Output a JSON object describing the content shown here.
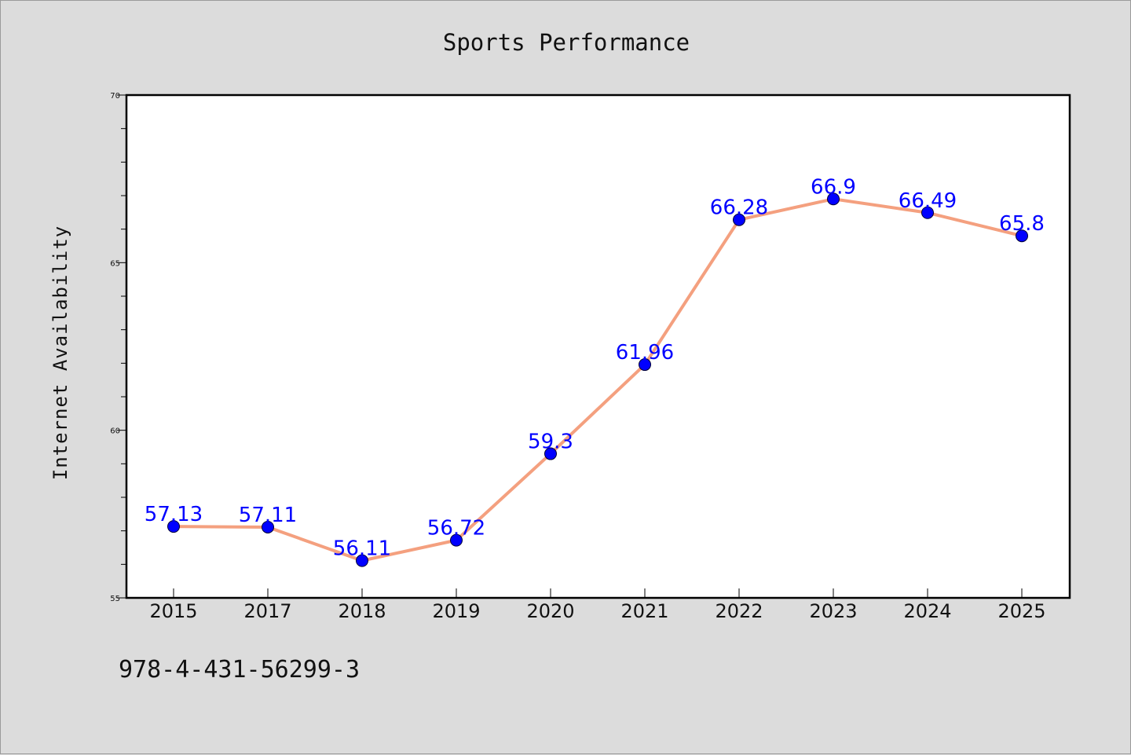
{
  "chart_data": {
    "type": "line",
    "title": "Sports Performance",
    "xlabel": "",
    "ylabel": "Internet Availability",
    "categories": [
      "2015",
      "2017",
      "2018",
      "2019",
      "2020",
      "2021",
      "2022",
      "2023",
      "2024",
      "2025"
    ],
    "series": [
      {
        "values": [
          57.13,
          57.11,
          56.11,
          56.72,
          59.3,
          61.96,
          66.28,
          66.9,
          66.49,
          65.8
        ],
        "labels": [
          "57.13",
          "57.11",
          "56.11",
          "56.72",
          "59.3",
          "61.96",
          "66.28",
          "66.9",
          "66.49",
          "65.8"
        ],
        "line_color": "#f4a07f",
        "marker_color": "#0000ff"
      }
    ],
    "ylim": [
      55,
      70
    ],
    "yticks": [
      "55",
      "60",
      "65",
      "70"
    ],
    "grid": false,
    "legend": "none"
  },
  "footer": {
    "isbn": "978-4-431-56299-3"
  }
}
